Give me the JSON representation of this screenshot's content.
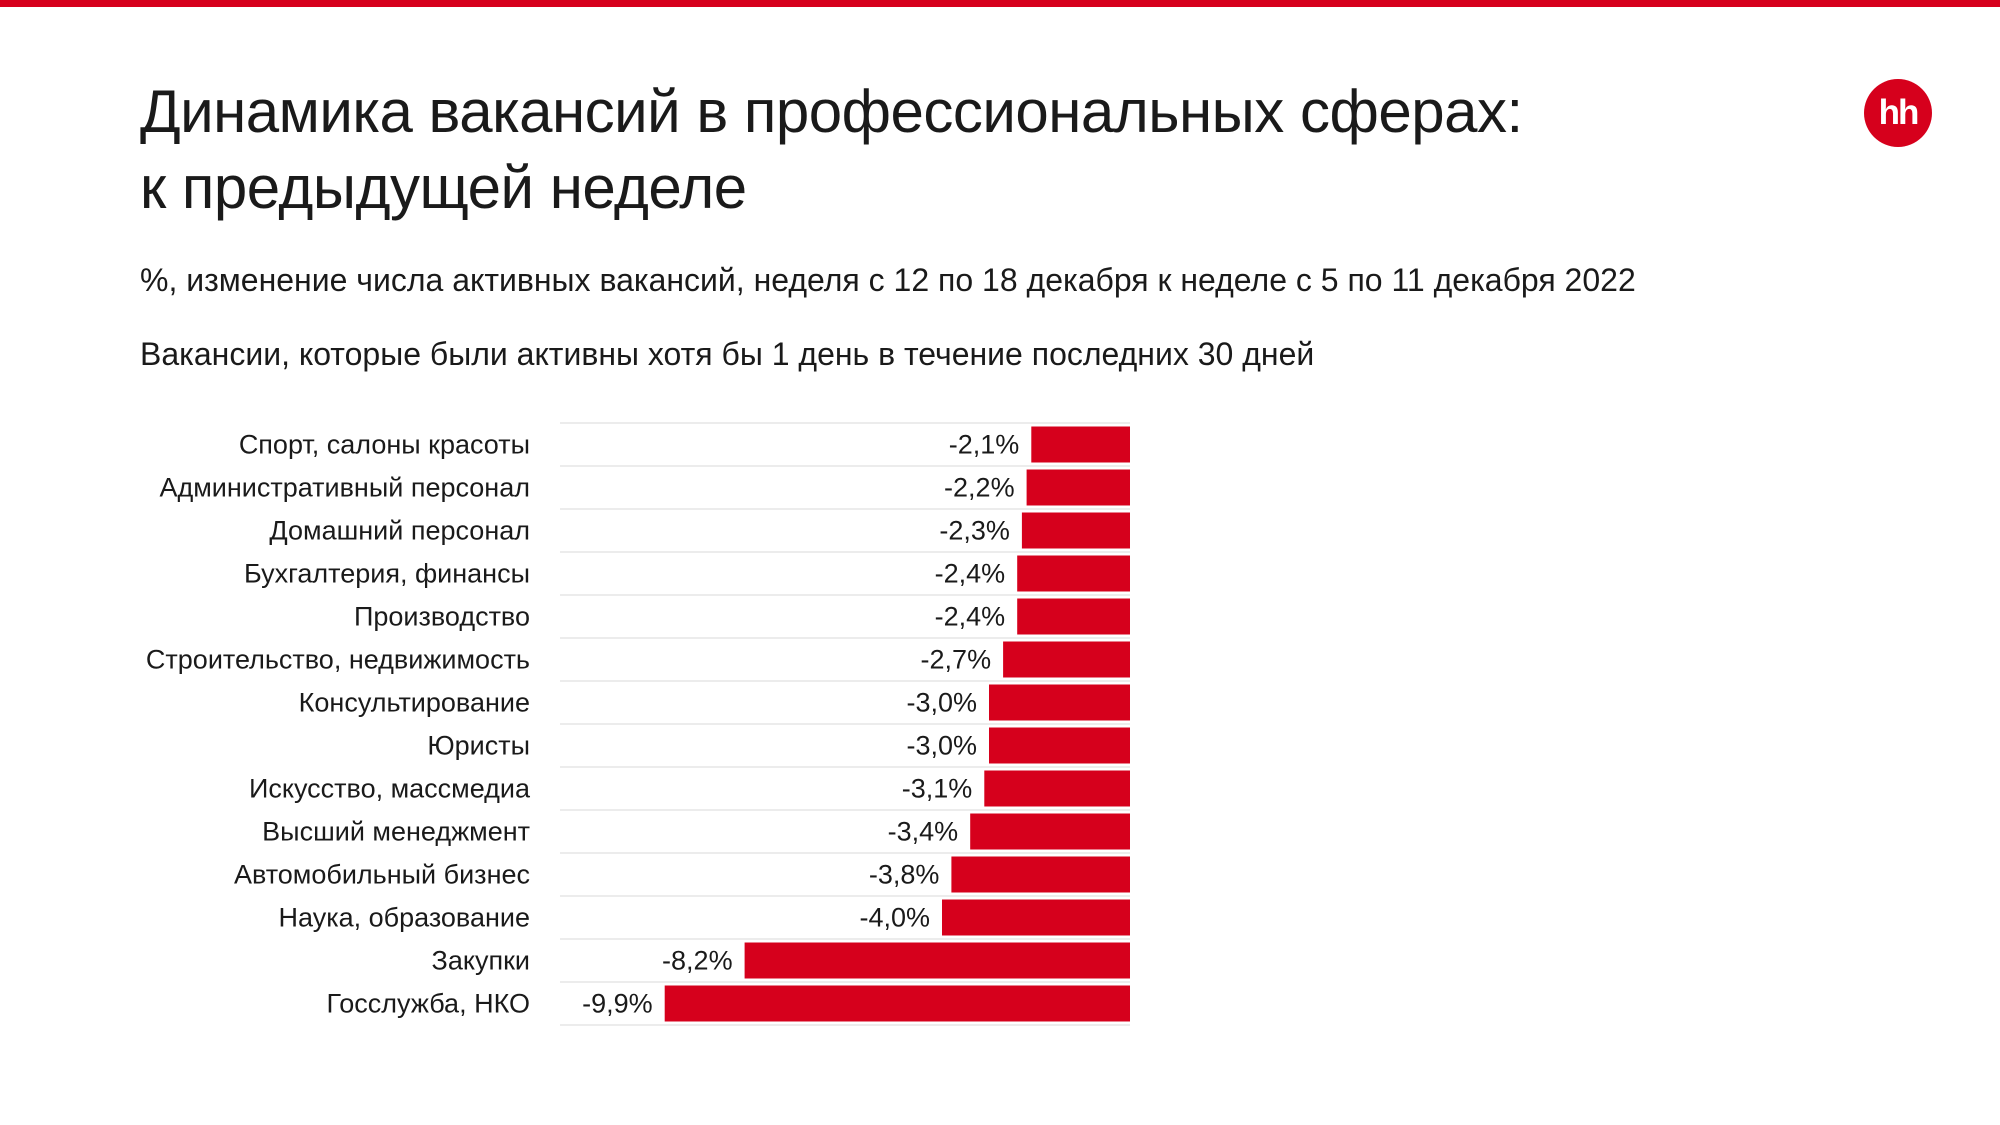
{
  "header": {
    "title_line1": "Динамика вакансий в профессиональных сферах:",
    "title_line2": "к предыдущей неделе",
    "subtitle": "%, изменение числа активных вакансий, неделя с 12 по 18 декабря к неделе с 5 по 11 декабря 2022",
    "note": "Вакансии, которые были активны хотя бы 1 день в течение последних 30 дней",
    "logo_text": "hh"
  },
  "colors": {
    "accent": "#d6001c",
    "bar": "#d6001c",
    "grid": "#e6e6e6",
    "text": "#1a1a1a"
  },
  "chart_data": {
    "type": "bar",
    "orientation": "horizontal",
    "categories": [
      "Спорт, салоны красоты",
      "Административный персонал",
      "Домашний персонал",
      "Бухгалтерия, финансы",
      "Производство",
      "Строительство, недвижимость",
      "Консультирование",
      "Юристы",
      "Искусство, массмедиа",
      "Высший менеджмент",
      "Автомобильный бизнес",
      "Наука, образование",
      "Закупки",
      "Госслужба, НКО"
    ],
    "values": [
      -2.1,
      -2.2,
      -2.3,
      -2.4,
      -2.4,
      -2.7,
      -3.0,
      -3.0,
      -3.1,
      -3.4,
      -3.8,
      -4.0,
      -8.2,
      -9.9
    ],
    "value_labels": [
      "-2,1%",
      "-2,2%",
      "-2,3%",
      "-2,4%",
      "-2,4%",
      "-2,7%",
      "-3,0%",
      "-3,0%",
      "-3,1%",
      "-3,4%",
      "-3,8%",
      "-4,0%",
      "-8,2%",
      "-9,9%"
    ],
    "xlim": [
      -11.5,
      0
    ],
    "grid": true,
    "legend": "none"
  }
}
